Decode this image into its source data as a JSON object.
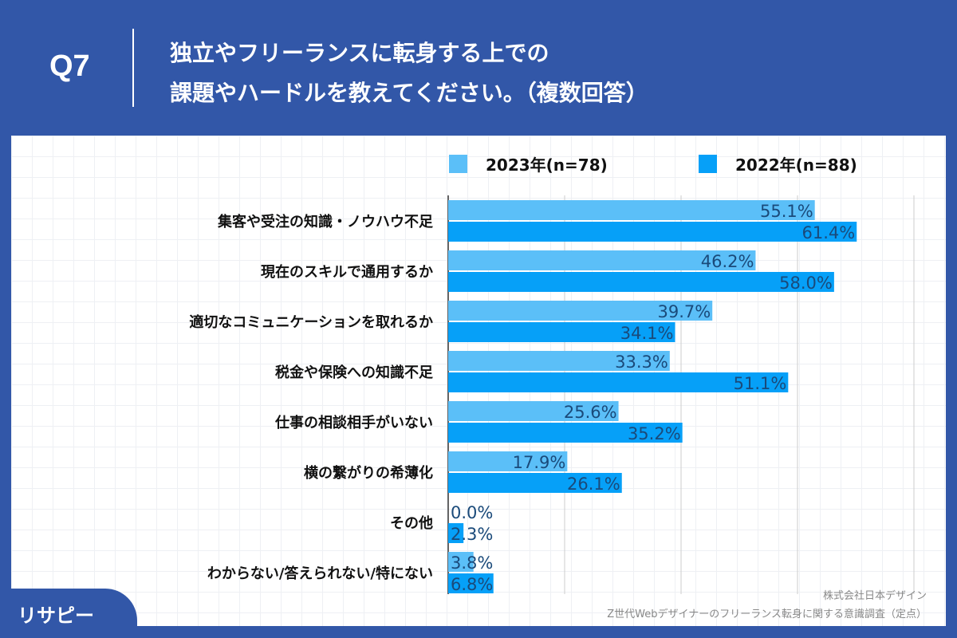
{
  "header": {
    "q": "Q7",
    "title_lines": [
      "独立やフリーランスに転身する上での",
      "課題やハードルを教えてください。（複数回答）"
    ]
  },
  "colors": {
    "background": "#3257a8",
    "series_2023": "#5bbff8",
    "series_2022": "#06a0f8",
    "label": "#1a4a7a"
  },
  "chart_data": {
    "type": "bar",
    "orientation": "horizontal",
    "categories": [
      "集客や受注の知識・ノウハウ不足",
      "現在のスキルで通用するか",
      "適切なコミュニケーションを取れるか",
      "税金や保険への知識不足",
      "仕事の相談相手がいない",
      "横の繋がりの希薄化",
      "その他",
      "わからない/答えられない/特にない"
    ],
    "series": [
      {
        "name": "2023年(n=78)",
        "values": [
          55.1,
          46.2,
          39.7,
          33.3,
          25.6,
          17.9,
          0.0,
          3.8
        ]
      },
      {
        "name": "2022年(n=88)",
        "values": [
          61.4,
          58.0,
          34.1,
          51.1,
          35.2,
          26.1,
          2.3,
          6.8
        ]
      }
    ],
    "xlim": [
      0,
      70
    ],
    "grid": true,
    "legend": "top",
    "unit": "%"
  },
  "footer": {
    "logo": "リサピー",
    "company": "株式会社日本デザイン",
    "survey": "Z世代Webデザイナーのフリーランス転身に関する意識調査（定点）"
  }
}
